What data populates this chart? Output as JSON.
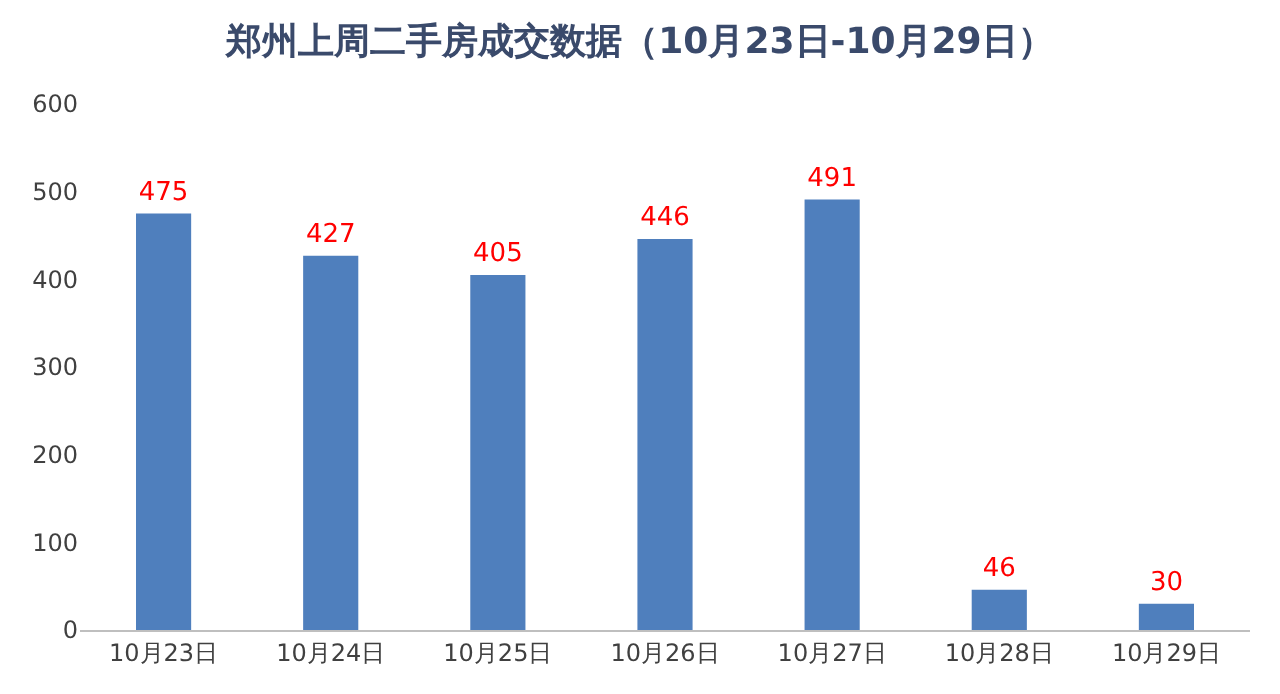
{
  "chart_data": {
    "type": "bar",
    "title": "郑州上周二手房成交数据（10月23日-10月29日）",
    "categories": [
      "10月23日",
      "10月24日",
      "10月25日",
      "10月26日",
      "10月27日",
      "10月28日",
      "10月29日"
    ],
    "values": [
      475,
      427,
      405,
      446,
      491,
      46,
      30
    ],
    "color": "#4f7fbd",
    "ylim": [
      0,
      600
    ],
    "yticks": [
      0,
      100,
      200,
      300,
      400,
      500,
      600
    ],
    "grid": false,
    "legend": false,
    "data_labels": true
  }
}
